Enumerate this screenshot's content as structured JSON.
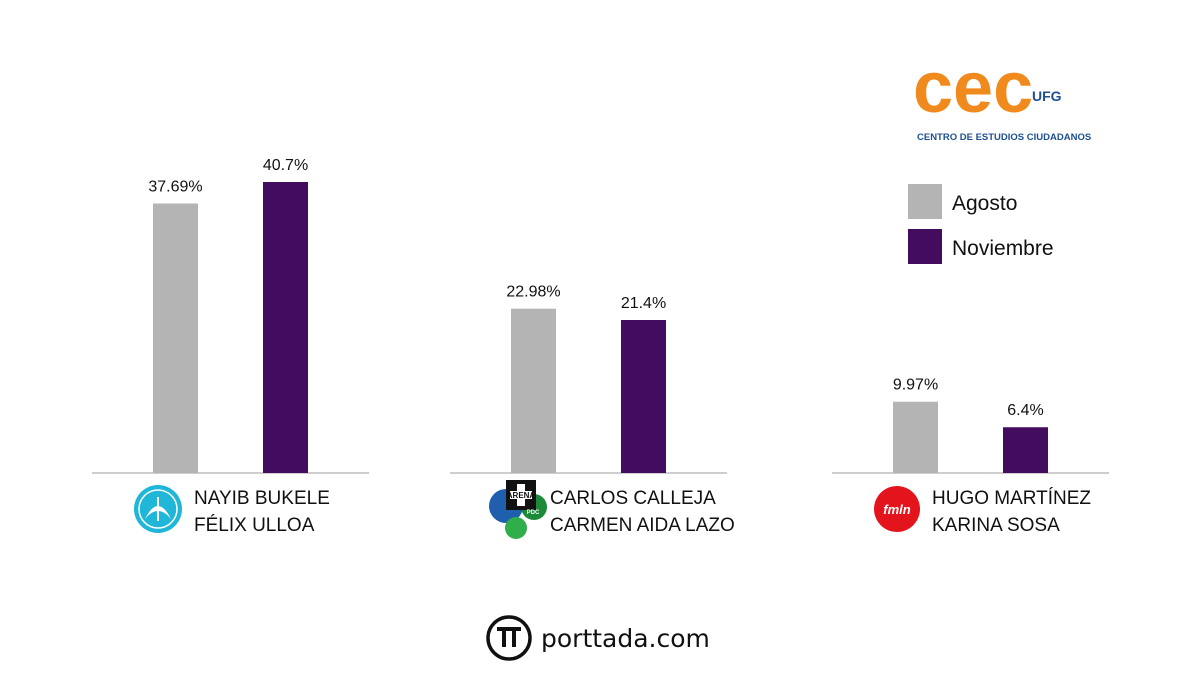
{
  "chart_data": {
    "type": "bar",
    "categories": [
      [
        "NAYIB BUKELE",
        "FÉLIX ULLOA"
      ],
      [
        "CARLOS CALLEJA",
        "CARMEN AIDA LAZO"
      ],
      [
        "HUGO MARTÍNEZ",
        "KARINA SOSA"
      ]
    ],
    "series": [
      {
        "name": "Agosto",
        "values": [
          37.69,
          22.98,
          9.97
        ],
        "labels": [
          "37.69%",
          "22.98%",
          "9.97%"
        ],
        "color": "#b4b4b4"
      },
      {
        "name": "Noviembre",
        "values": [
          40.7,
          21.4,
          6.4
        ],
        "labels": [
          "40.7%",
          "21.4%",
          "6.4%"
        ],
        "color": "#440c5e"
      }
    ],
    "ylim": [
      0,
      45
    ],
    "grid": false,
    "legend_position": "top-right"
  },
  "party_logos": [
    {
      "name": "nuevas-ideas-logo",
      "color": "#1fb6d8"
    },
    {
      "name": "arena-coalition-logo",
      "color": "#1f5fae",
      "texts": [
        "ARENA",
        "PDC"
      ]
    },
    {
      "name": "fmln-logo",
      "color": "#e3141c",
      "text": "fmln"
    }
  ],
  "brand": {
    "logo_text": "cec",
    "logo_badge": "UFG",
    "logo_color": "#f08a1c",
    "logo_accent": "#1d4f91",
    "subtitle": "CENTRO DE ESTUDIOS CIUDADANOS"
  },
  "footer": {
    "site": "porttada.com"
  }
}
